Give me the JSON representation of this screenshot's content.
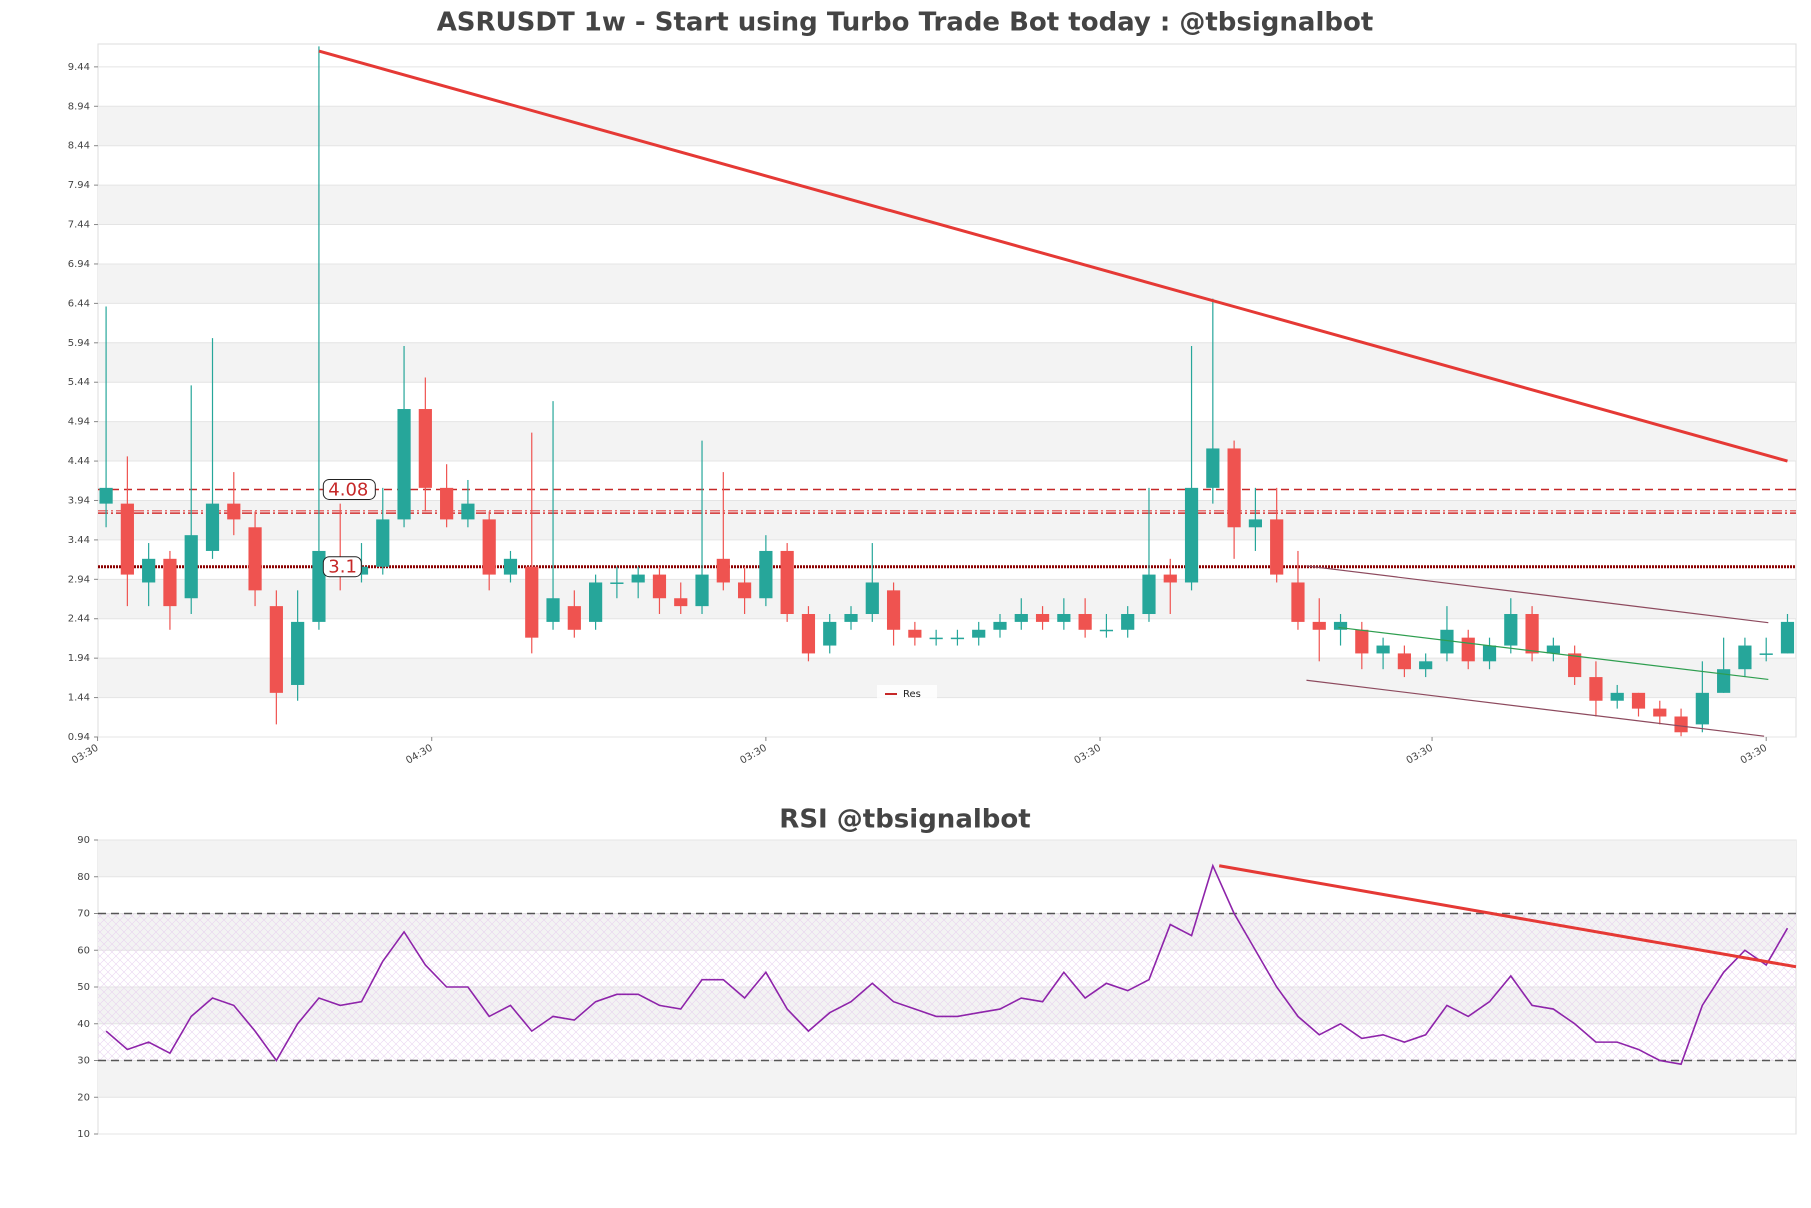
{
  "chart_data": [
    {
      "type": "candlestick",
      "title": "ASRUSDT 1w - Start using Turbo Trade Bot today : @tbsignalbot",
      "up_color": "#26a69a",
      "down_color": "#ef5350",
      "xlim": [
        -0.38,
        79.4
      ],
      "ylim": [
        0.94,
        9.73
      ],
      "yticks": [
        0.94,
        1.44,
        1.94,
        2.44,
        2.94,
        3.44,
        3.94,
        4.44,
        4.94,
        5.44,
        5.94,
        6.44,
        6.94,
        7.44,
        7.94,
        8.44,
        8.94,
        9.44
      ],
      "xticks": [
        {
          "value": -0.4,
          "label": "03:30"
        },
        {
          "value": 15.3,
          "label": "04:30"
        },
        {
          "value": 31.0,
          "label": "03:30"
        },
        {
          "value": 46.7,
          "label": "03:30"
        },
        {
          "value": 62.3,
          "label": "03:30"
        },
        {
          "value": 78.0,
          "label": "03:30"
        }
      ],
      "grid": true,
      "open": [
        3.9,
        3.9,
        2.9,
        3.2,
        2.7,
        3.3,
        3.9,
        3.6,
        2.6,
        1.6,
        2.4,
        3.2,
        3.0,
        3.1,
        3.7,
        5.1,
        4.1,
        3.7,
        3.7,
        3.0,
        3.1,
        2.4,
        2.6,
        2.4,
        2.9,
        2.9,
        3.0,
        2.7,
        2.6,
        3.2,
        2.9,
        2.7,
        3.3,
        2.5,
        2.1,
        2.4,
        2.5,
        2.8,
        2.3,
        2.2,
        2.2,
        2.2,
        2.3,
        2.4,
        2.5,
        2.4,
        2.5,
        2.3,
        2.3,
        2.5,
        3.0,
        2.9,
        4.1,
        4.6,
        3.6,
        3.7,
        2.9,
        2.4,
        2.3,
        2.3,
        2.0,
        2.0,
        1.8,
        2.0,
        2.2,
        1.9,
        2.1,
        2.5,
        2.0,
        2.0,
        1.7,
        1.4,
        1.5,
        1.3,
        1.2,
        1.1,
        1.5,
        1.8,
        2.0,
        2.0
      ],
      "high": [
        6.4,
        4.5,
        3.4,
        3.3,
        5.4,
        6.0,
        4.3,
        3.8,
        2.8,
        2.8,
        9.7,
        3.9,
        3.4,
        4.1,
        5.9,
        5.5,
        4.4,
        4.2,
        3.8,
        3.3,
        4.8,
        5.2,
        2.8,
        3.0,
        3.1,
        3.1,
        3.1,
        2.9,
        4.7,
        4.3,
        3.1,
        3.5,
        3.4,
        2.6,
        2.5,
        2.6,
        3.4,
        2.9,
        2.4,
        2.3,
        2.3,
        2.4,
        2.5,
        2.7,
        2.6,
        2.7,
        2.7,
        2.5,
        2.6,
        4.1,
        3.2,
        5.9,
        6.5,
        4.7,
        4.1,
        4.1,
        3.3,
        2.7,
        2.5,
        2.4,
        2.2,
        2.1,
        2.0,
        2.6,
        2.3,
        2.2,
        2.7,
        2.6,
        2.2,
        2.1,
        1.9,
        1.6,
        1.5,
        1.4,
        1.3,
        1.9,
        2.2,
        2.2,
        2.2,
        2.5
      ],
      "low": [
        3.6,
        2.6,
        2.6,
        2.3,
        2.5,
        3.2,
        3.5,
        2.6,
        1.1,
        1.4,
        2.3,
        2.8,
        2.9,
        3.0,
        3.6,
        3.8,
        3.6,
        3.6,
        2.8,
        2.9,
        2.0,
        2.3,
        2.2,
        2.3,
        2.7,
        2.7,
        2.5,
        2.5,
        2.5,
        2.8,
        2.5,
        2.6,
        2.4,
        1.9,
        2.0,
        2.3,
        2.4,
        2.1,
        2.1,
        2.1,
        2.1,
        2.1,
        2.2,
        2.3,
        2.3,
        2.3,
        2.2,
        2.2,
        2.2,
        2.4,
        2.5,
        2.8,
        3.9,
        3.2,
        3.3,
        2.9,
        2.3,
        1.9,
        2.1,
        1.8,
        1.8,
        1.7,
        1.7,
        1.9,
        1.8,
        1.8,
        2.0,
        1.9,
        1.9,
        1.6,
        1.2,
        1.3,
        1.2,
        1.1,
        0.95,
        1.0,
        1.5,
        1.7,
        1.9,
        2.0
      ],
      "close": [
        4.1,
        3.0,
        3.2,
        2.6,
        3.5,
        3.9,
        3.7,
        2.8,
        1.5,
        2.4,
        3.3,
        3.0,
        3.1,
        3.7,
        5.1,
        4.1,
        3.7,
        3.9,
        3.0,
        3.2,
        2.2,
        2.7,
        2.3,
        2.9,
        2.9,
        3.0,
        2.7,
        2.6,
        3.0,
        2.9,
        2.7,
        3.3,
        2.5,
        2.0,
        2.4,
        2.5,
        2.9,
        2.3,
        2.2,
        2.2,
        2.2,
        2.3,
        2.4,
        2.5,
        2.4,
        2.5,
        2.3,
        2.3,
        2.5,
        3.0,
        2.9,
        4.1,
        4.6,
        3.6,
        3.7,
        3.0,
        2.4,
        2.3,
        2.4,
        2.0,
        2.1,
        1.8,
        1.9,
        2.3,
        1.9,
        2.1,
        2.5,
        2.0,
        2.1,
        1.7,
        1.4,
        1.5,
        1.3,
        1.2,
        1.0,
        1.5,
        1.8,
        2.1,
        2.0,
        2.4
      ],
      "hlines": [
        {
          "value": 4.08,
          "label": "4.08",
          "color": "#c62828",
          "style": "dashed"
        },
        {
          "value": 3.78,
          "color": "#d32f2f",
          "style": "dashdot"
        },
        {
          "value": 3.81,
          "color": "#e57373",
          "style": "dashdot"
        },
        {
          "value": 3.1,
          "label": "3.1",
          "color": "#8b0000",
          "style": "dotted"
        }
      ],
      "lines": [
        {
          "x": [
            10.0,
            79.0
          ],
          "y": [
            9.64,
            4.44
          ],
          "color": "#e53935",
          "width": 3
        },
        {
          "x": [
            56.4,
            78.1
          ],
          "y": [
            3.11,
            2.39
          ],
          "color": "#8d4a5e",
          "width": 1.2
        },
        {
          "x": [
            56.4,
            77.9
          ],
          "y": [
            1.66,
            0.95
          ],
          "color": "#8d4a5e",
          "width": 1.2
        },
        {
          "x": [
            57.9,
            78.1
          ],
          "y": [
            2.33,
            1.67
          ],
          "color": "#2e9e4f",
          "width": 1.2
        }
      ],
      "legend": [
        {
          "name": "Res",
          "color": "#c62828"
        }
      ]
    },
    {
      "type": "line",
      "title": "RSI @tbsignalbot",
      "xlim": [
        -0.38,
        79.4
      ],
      "ylim": [
        10,
        90
      ],
      "yticks": [
        10,
        20,
        30,
        40,
        50,
        60,
        70,
        80,
        90
      ],
      "grid": true,
      "series": [
        {
          "name": "RSI",
          "color": "#8e24aa",
          "values": [
            38,
            33,
            35,
            32,
            42,
            47,
            45,
            38,
            30,
            40,
            47,
            45,
            46,
            57,
            65,
            56,
            50,
            50,
            42,
            45,
            38,
            42,
            41,
            46,
            48,
            48,
            45,
            44,
            52,
            52,
            47,
            54,
            44,
            38,
            43,
            46,
            51,
            46,
            44,
            42,
            42,
            43,
            44,
            47,
            46,
            54,
            47,
            51,
            49,
            52,
            67,
            64,
            83,
            70,
            60,
            50,
            42,
            37,
            40,
            36,
            37,
            35,
            37,
            45,
            42,
            46,
            53,
            45,
            44,
            40,
            35,
            35,
            33,
            30,
            29,
            45,
            54,
            60,
            56,
            66
          ]
        }
      ],
      "hlines": [
        {
          "value": 70,
          "color": "#555",
          "style": "dashed"
        },
        {
          "value": 30,
          "color": "#555",
          "style": "dashed"
        }
      ],
      "lines": [
        {
          "x": [
            52.3,
            79.4
          ],
          "y": [
            83,
            55.5
          ],
          "color": "#e53935",
          "width": 3
        }
      ]
    }
  ]
}
